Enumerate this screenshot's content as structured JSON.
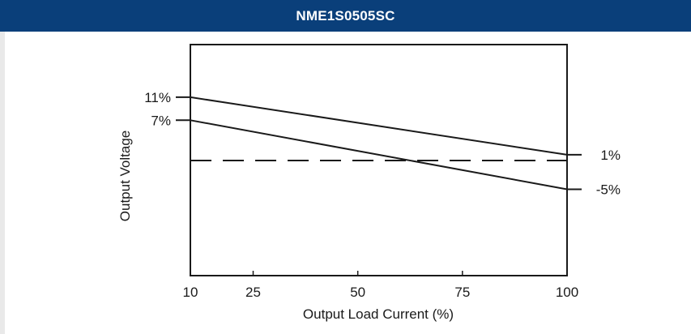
{
  "title": "NME1S0505SC",
  "colors": {
    "header_bg": "#0a3f7a",
    "header_text": "#ffffff",
    "page_bg": "#e9e9e9",
    "panel_bg": "#ffffff",
    "ink": "#1a1a1a"
  },
  "chart_data": {
    "type": "line",
    "title": "NME1S0505SC",
    "xlabel": "Output Load Current (%)",
    "ylabel": "Output Voltage",
    "xlim": [
      10,
      100
    ],
    "xticks": [
      10,
      25,
      50,
      75,
      100
    ],
    "xtick_labels": [
      "10",
      "25",
      "50",
      "75",
      "100"
    ],
    "grid": false,
    "series": [
      {
        "style": "solid",
        "x": [
          10,
          100
        ],
        "y": [
          11,
          1
        ],
        "start_label": "11%",
        "end_label": "1%"
      },
      {
        "style": "solid",
        "x": [
          10,
          100
        ],
        "y": [
          7,
          -5
        ],
        "start_label": "7%",
        "end_label": "-5%"
      },
      {
        "style": "dashed",
        "x": [
          10,
          100
        ],
        "y": [
          0,
          0
        ]
      }
    ]
  }
}
